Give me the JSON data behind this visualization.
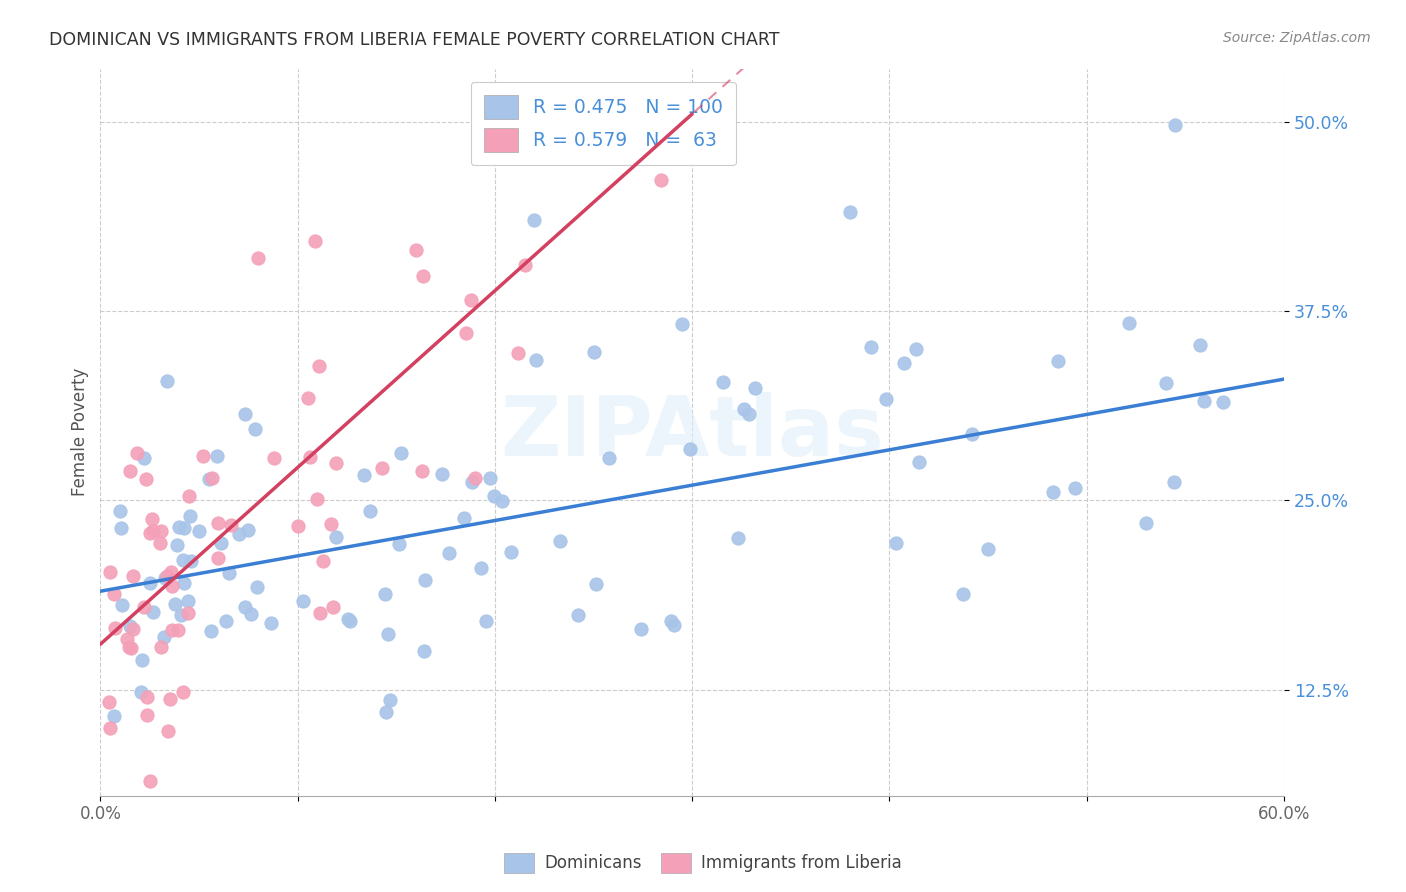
{
  "title": "DOMINICAN VS IMMIGRANTS FROM LIBERIA FEMALE POVERTY CORRELATION CHART",
  "source": "Source: ZipAtlas.com",
  "ylabel": "Female Poverty",
  "yticks": [
    "12.5%",
    "25.0%",
    "37.5%",
    "50.0%"
  ],
  "ytick_vals": [
    0.125,
    0.25,
    0.375,
    0.5
  ],
  "xlim": [
    0.0,
    0.6
  ],
  "ylim": [
    0.055,
    0.535
  ],
  "legend_blue_R": "R = 0.475",
  "legend_blue_N": "N = 100",
  "legend_pink_R": "R = 0.579",
  "legend_pink_N": "N =  63",
  "blue_color": "#a8c4e8",
  "pink_color": "#f4a0b8",
  "blue_line_color": "#3a7fd4",
  "pink_line_color": "#d44060",
  "legend_text_color": "#4a90d9",
  "dominicans_label": "Dominicans",
  "liberia_label": "Immigrants from Liberia",
  "blue_line_x0": 0.0,
  "blue_line_y0": 0.19,
  "blue_line_x1": 0.6,
  "blue_line_y1": 0.33,
  "pink_line_x0": 0.0,
  "pink_line_y0": 0.155,
  "pink_line_x1": 0.3,
  "pink_line_y1": 0.505,
  "watermark": "ZIPAtlas",
  "watermark_color": "#d8e8f0"
}
